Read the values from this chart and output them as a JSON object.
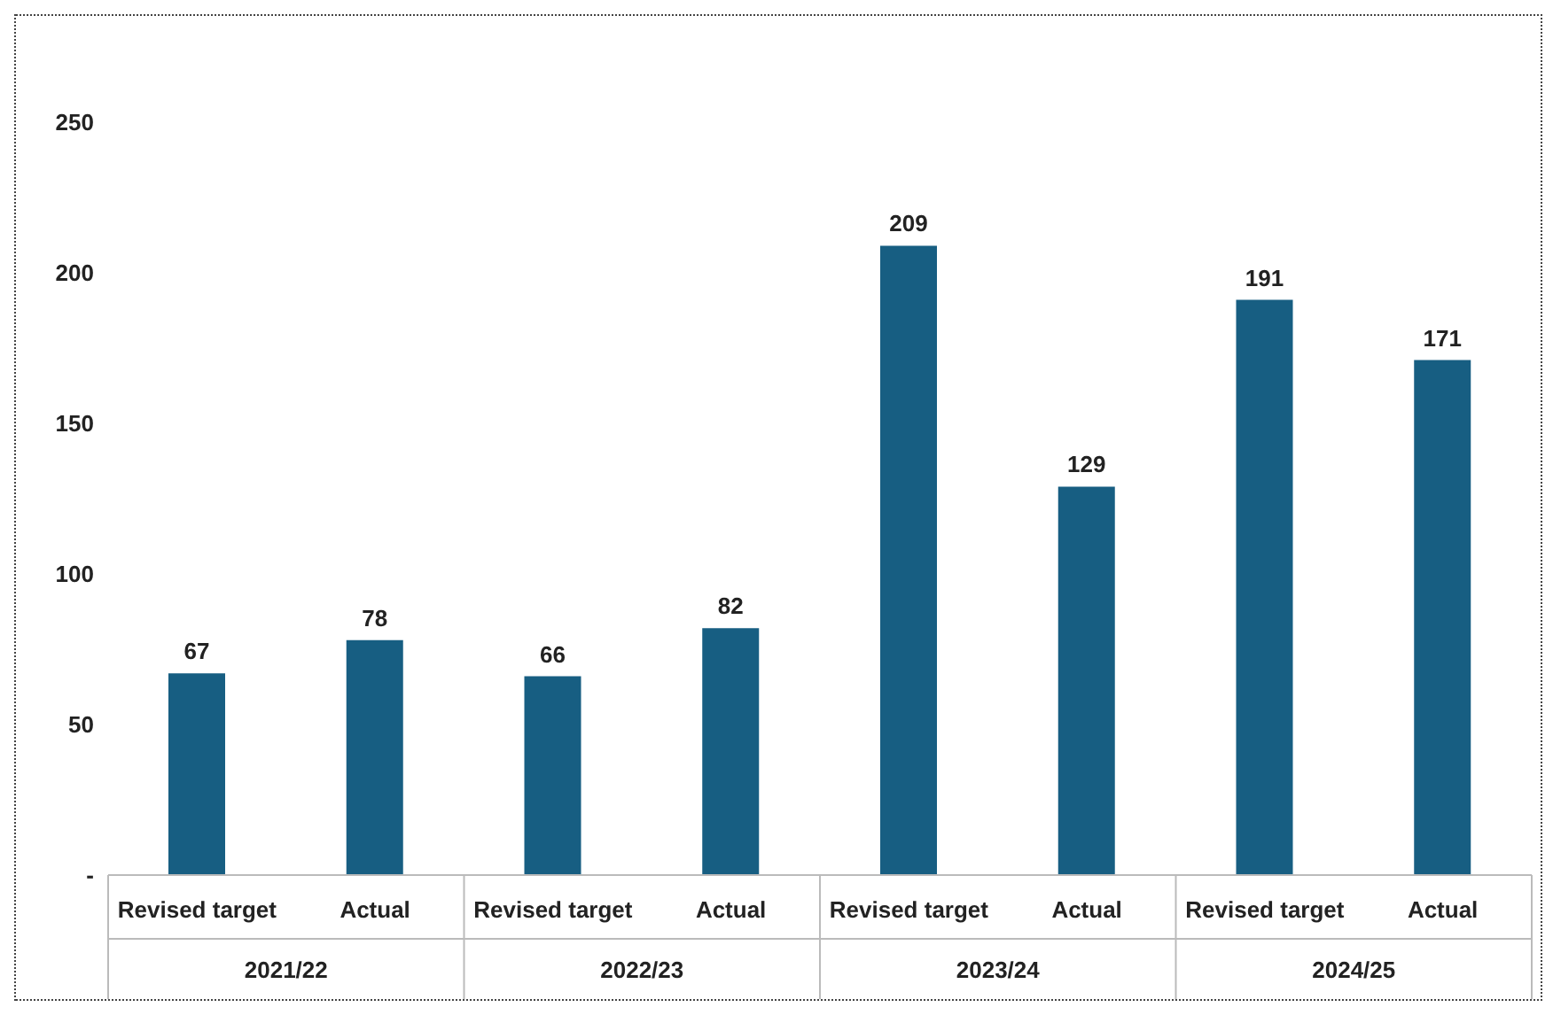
{
  "chart_data": {
    "type": "bar",
    "categories": [
      "Revised target",
      "Actual",
      "Revised target",
      "Actual",
      "Revised target",
      "Actual",
      "Revised target",
      "Actual"
    ],
    "annotations": [
      "2021/22",
      "2022/23",
      "2023/24",
      "2024/25"
    ],
    "series": [
      {
        "color": "#175e82",
        "values": [
          67,
          78,
          66,
          82,
          209,
          129,
          191,
          171
        ]
      }
    ],
    "ylim": [
      0,
      250
    ],
    "yticks": [
      {
        "value": 0,
        "label": "-"
      },
      50,
      100,
      150,
      200,
      250
    ],
    "data_labels": true,
    "grid": false,
    "legend": false
  }
}
